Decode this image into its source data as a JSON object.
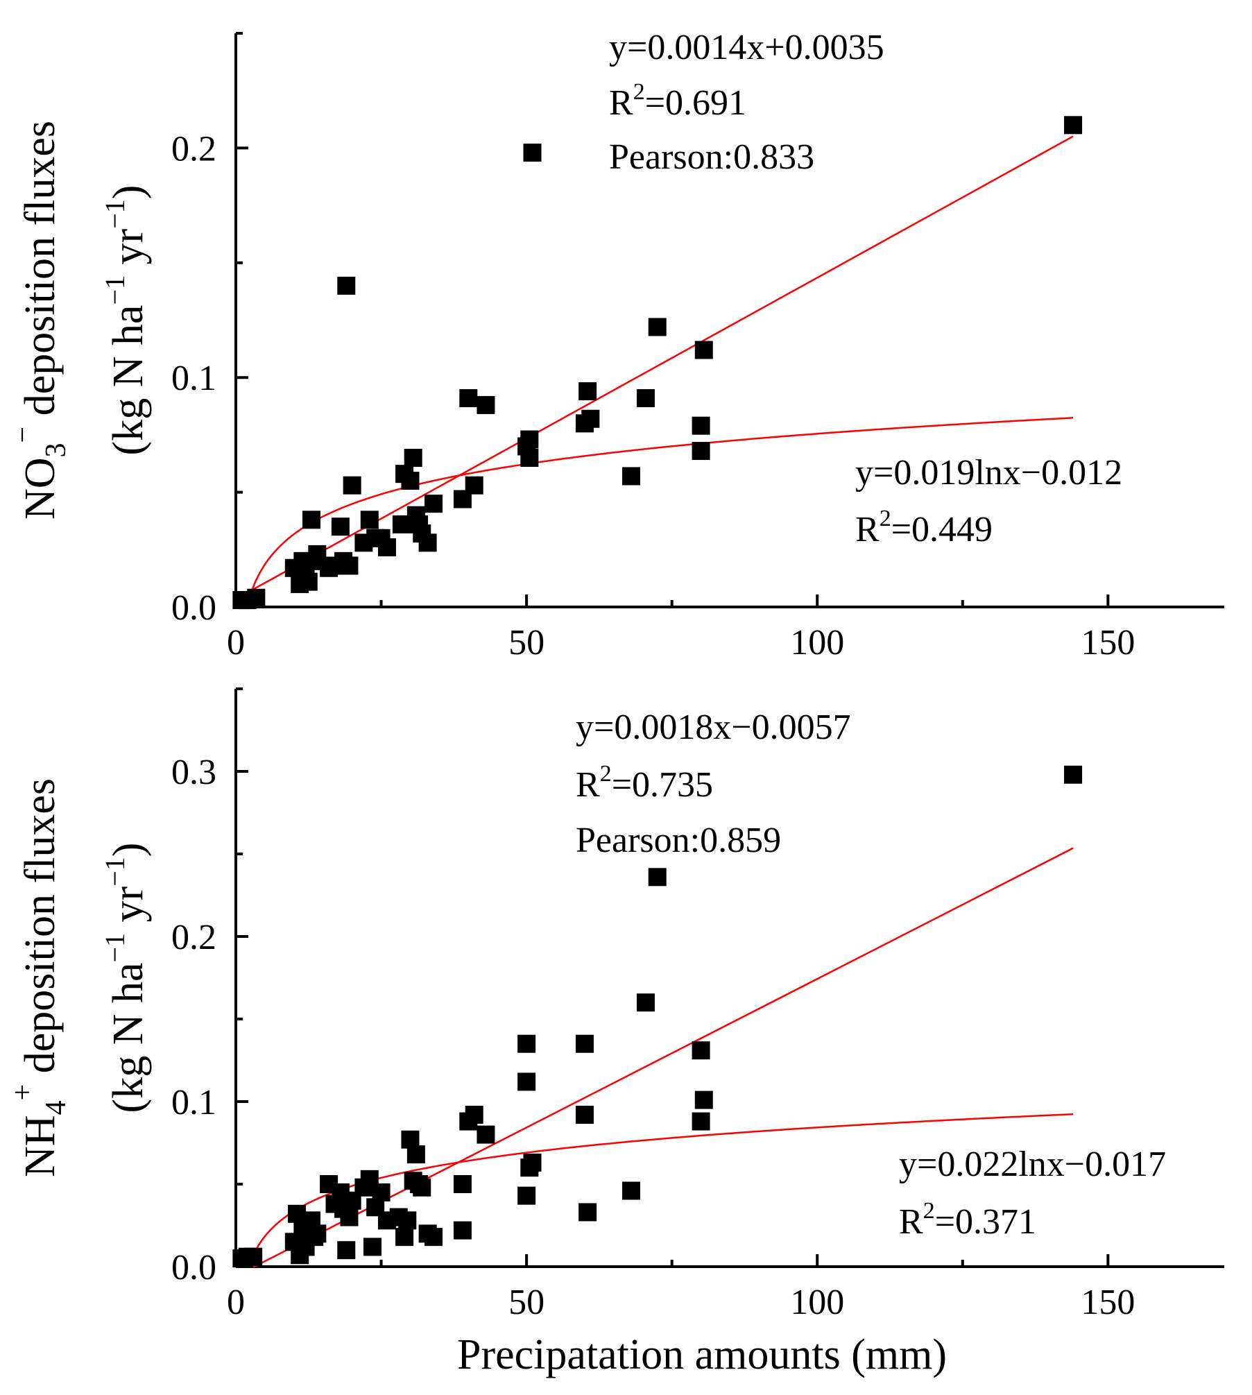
{
  "chart_data": [
    {
      "type": "scatter",
      "panel": "top",
      "xlabel": "",
      "ylabel_line1": [
        "NO",
        "3",
        "−",
        " deposition fluxes"
      ],
      "ylabel_line2": [
        "(kg N ha",
        "−1",
        " yr",
        "−1",
        ")"
      ],
      "xlim": [
        0,
        170
      ],
      "ylim": [
        0,
        0.25
      ],
      "xticks": [
        0,
        50,
        100,
        150
      ],
      "xtick_labels": [
        "0",
        "50",
        "100",
        "150"
      ],
      "yticks": [
        0.0,
        0.1,
        0.2
      ],
      "ytick_labels": [
        "0.0",
        "0.1",
        "0.2"
      ],
      "annotations": {
        "linear_eq": "y=0.0014x+0.0035",
        "linear_r2_prefix": "R",
        "linear_r2_sup": "2",
        "linear_r2_value": "=0.691",
        "pearson": "Pearson:0.833",
        "log_eq": "y=0.019lnx−0.012",
        "log_r2_prefix": "R",
        "log_r2_sup": "2",
        "log_r2_value": "=0.449"
      },
      "fits": {
        "linear": {
          "slope": 0.0014,
          "intercept": 0.0035,
          "x_range": [
            0,
            144
          ]
        },
        "log": {
          "a": 0.019,
          "b": -0.012,
          "x_range": [
            2,
            144
          ]
        }
      },
      "points": [
        [
          1,
          0.003
        ],
        [
          2,
          0.003
        ],
        [
          3.5,
          0.004
        ],
        [
          10,
          0.017
        ],
        [
          11,
          0.01
        ],
        [
          11.5,
          0.02
        ],
        [
          12,
          0.013
        ],
        [
          12.5,
          0.011
        ],
        [
          13,
          0.038
        ],
        [
          13.5,
          0.02
        ],
        [
          14,
          0.023
        ],
        [
          16,
          0.017
        ],
        [
          17,
          0.018
        ],
        [
          18,
          0.035
        ],
        [
          18.5,
          0.02
        ],
        [
          19,
          0.14
        ],
        [
          19.5,
          0.018
        ],
        [
          20,
          0.053
        ],
        [
          22,
          0.028
        ],
        [
          23,
          0.038
        ],
        [
          24,
          0.03
        ],
        [
          25,
          0.03
        ],
        [
          26,
          0.026
        ],
        [
          28.5,
          0.036
        ],
        [
          29,
          0.058
        ],
        [
          30,
          0.055
        ],
        [
          30.5,
          0.065
        ],
        [
          31,
          0.04
        ],
        [
          31.5,
          0.036
        ],
        [
          32,
          0.032
        ],
        [
          33,
          0.028
        ],
        [
          34,
          0.045
        ],
        [
          39,
          0.047
        ],
        [
          40,
          0.091
        ],
        [
          41,
          0.053
        ],
        [
          43,
          0.088
        ],
        [
          50,
          0.07
        ],
        [
          50.5,
          0.073
        ],
        [
          50.5,
          0.065
        ],
        [
          51,
          0.198
        ],
        [
          60,
          0.08
        ],
        [
          60.5,
          0.094
        ],
        [
          61,
          0.082
        ],
        [
          68,
          0.057
        ],
        [
          70.5,
          0.091
        ],
        [
          72.5,
          0.122
        ],
        [
          80,
          0.079
        ],
        [
          80,
          0.068
        ],
        [
          80.5,
          0.112
        ],
        [
          144,
          0.21
        ]
      ]
    },
    {
      "type": "scatter",
      "panel": "bottom",
      "xlabel": "Precipatation amounts (mm)",
      "ylabel_line1": [
        "NH",
        "4",
        "+",
        " deposition fluxes"
      ],
      "ylabel_line2": [
        "(kg N ha",
        "−1",
        " yr",
        "−1",
        ")"
      ],
      "xlim": [
        0,
        170
      ],
      "ylim": [
        0,
        0.35
      ],
      "xticks": [
        0,
        50,
        100,
        150
      ],
      "xtick_labels": [
        "0",
        "50",
        "100",
        "150"
      ],
      "yticks": [
        0.0,
        0.1,
        0.2,
        0.3
      ],
      "ytick_labels": [
        "0.0",
        "0.1",
        "0.2",
        "0.3"
      ],
      "annotations": {
        "linear_eq": "y=0.0018x−0.0057",
        "linear_r2_prefix": "R",
        "linear_r2_sup": "2",
        "linear_r2_value": "=0.735",
        "pearson": "Pearson:0.859",
        "log_eq": "y=0.022lnx−0.017",
        "log_r2_prefix": "R",
        "log_r2_sup": "2",
        "log_r2_value": "=0.371"
      },
      "fits": {
        "linear": {
          "slope": 0.0018,
          "intercept": -0.0057,
          "x_range": [
            3,
            144
          ]
        },
        "log": {
          "a": 0.022,
          "b": -0.017,
          "x_range": [
            2.5,
            144
          ]
        }
      },
      "points": [
        [
          1,
          0.005
        ],
        [
          2,
          0.006
        ],
        [
          3,
          0.006
        ],
        [
          10,
          0.015
        ],
        [
          10.5,
          0.032
        ],
        [
          11,
          0.007
        ],
        [
          11.5,
          0.025
        ],
        [
          12,
          0.012
        ],
        [
          12.5,
          0.02
        ],
        [
          13,
          0.028
        ],
        [
          13.5,
          0.018
        ],
        [
          14,
          0.02
        ],
        [
          16,
          0.05
        ],
        [
          17,
          0.038
        ],
        [
          18,
          0.045
        ],
        [
          18.5,
          0.035
        ],
        [
          19,
          0.01
        ],
        [
          19.5,
          0.03
        ],
        [
          20,
          0.04
        ],
        [
          22,
          0.048
        ],
        [
          23,
          0.053
        ],
        [
          23.5,
          0.012
        ],
        [
          24,
          0.036
        ],
        [
          25,
          0.045
        ],
        [
          26,
          0.028
        ],
        [
          28,
          0.03
        ],
        [
          29,
          0.018
        ],
        [
          29.5,
          0.028
        ],
        [
          30,
          0.077
        ],
        [
          30.5,
          0.052
        ],
        [
          31,
          0.068
        ],
        [
          31.5,
          0.05
        ],
        [
          32,
          0.048
        ],
        [
          33,
          0.02
        ],
        [
          34,
          0.018
        ],
        [
          39,
          0.05
        ],
        [
          39,
          0.022
        ],
        [
          40,
          0.088
        ],
        [
          41,
          0.092
        ],
        [
          43,
          0.08
        ],
        [
          50,
          0.135
        ],
        [
          50,
          0.112
        ],
        [
          50,
          0.043
        ],
        [
          50.5,
          0.06
        ],
        [
          51,
          0.063
        ],
        [
          60,
          0.135
        ],
        [
          60,
          0.092
        ],
        [
          60.5,
          0.033
        ],
        [
          68,
          0.046
        ],
        [
          70.5,
          0.16
        ],
        [
          72.5,
          0.236
        ],
        [
          80,
          0.131
        ],
        [
          80,
          0.088
        ],
        [
          80.5,
          0.101
        ],
        [
          144,
          0.298
        ]
      ]
    }
  ]
}
